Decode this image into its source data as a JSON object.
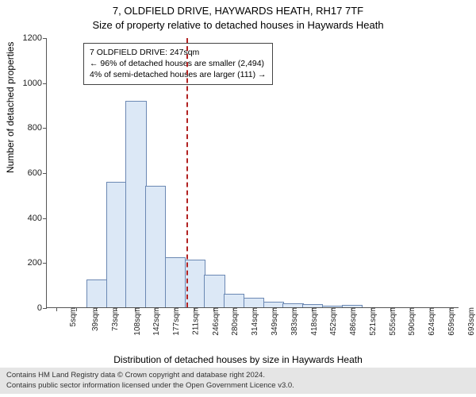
{
  "chart": {
    "type": "histogram",
    "title_line1": "7, OLDFIELD DRIVE, HAYWARDS HEATH, RH17 7TF",
    "title_line2": "Size of property relative to detached houses in Haywards Heath",
    "ylabel": "Number of detached properties",
    "xlabel": "Distribution of detached houses by size in Haywards Heath",
    "ylim": [
      0,
      1200
    ],
    "ytick_step": 200,
    "yticks": [
      0,
      200,
      400,
      600,
      800,
      1000,
      1200
    ],
    "xticks": [
      "5sqm",
      "39sqm",
      "73sqm",
      "108sqm",
      "142sqm",
      "177sqm",
      "211sqm",
      "246sqm",
      "280sqm",
      "314sqm",
      "349sqm",
      "383sqm",
      "418sqm",
      "452sqm",
      "486sqm",
      "521sqm",
      "555sqm",
      "590sqm",
      "624sqm",
      "659sqm",
      "693sqm"
    ],
    "bar_values": [
      0,
      0,
      120,
      555,
      915,
      535,
      220,
      210,
      140,
      55,
      40,
      20,
      15,
      10,
      3,
      8,
      0,
      0,
      0,
      0,
      0
    ],
    "bar_color": "#dce8f6",
    "bar_border": "#6b88b3",
    "background_color": "#ffffff",
    "axis_color": "#555555",
    "tick_fontsize": 11,
    "label_fontsize": 12,
    "title_fontsize": 13,
    "marker": {
      "x_index": 7,
      "color": "#b22222",
      "dash": "4 3"
    },
    "annotation": {
      "line1": "7 OLDFIELD DRIVE: 247sqm",
      "line2": "← 96% of detached houses are smaller (2,494)",
      "line3": "4% of semi-detached houses are larger (111) →",
      "border_color": "#444444",
      "bg_color": "#ffffff",
      "fontsize": 10.5
    }
  },
  "footer": {
    "line1": "Contains HM Land Registry data © Crown copyright and database right 2024.",
    "line2": "Contains public sector information licensed under the Open Government Licence v3.0.",
    "bg_color": "#e5e5e5",
    "fontsize": 9.5
  }
}
